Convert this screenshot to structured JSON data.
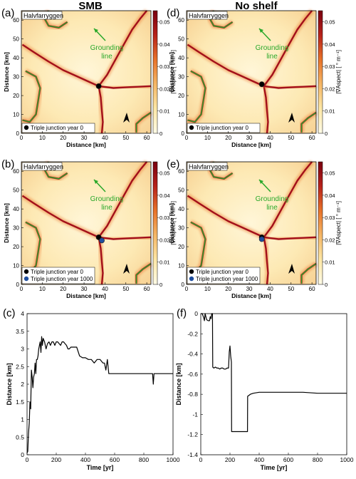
{
  "column_titles": [
    "SMB",
    "No shelf"
  ],
  "map_common": {
    "place_label": "Halvfarryggen",
    "grounding_label_line1": "Grounding",
    "grounding_label_line2": "line",
    "x_label": "Distance [km]",
    "y_label": "Distance [km]",
    "x_ticks": [
      0,
      10,
      20,
      30,
      40,
      50,
      60
    ],
    "y_ticks": [
      0,
      10,
      20,
      30,
      40,
      50,
      60
    ],
    "colorbar_label": "|∇Aspect| [ ° m⁻¹]",
    "colorbar_ticks": [
      0,
      0.01,
      0.02,
      0.03,
      0.04,
      0.05
    ],
    "colorbar_range": [
      0,
      0.055
    ],
    "colors": {
      "low": "#fffbe6",
      "mid": "#e8732a",
      "high": "#7a0010",
      "grounding": "#2aa82a"
    }
  },
  "maps": [
    {
      "panel": "(a)",
      "legend": [
        {
          "label": "Triple junction year 0",
          "color": "#000000"
        }
      ],
      "junctions": [
        {
          "x": 37,
          "y": 25,
          "color": "#000000"
        }
      ]
    },
    {
      "panel": "(d)",
      "legend": [
        {
          "label": "Triple junction year 0",
          "color": "#000000"
        }
      ],
      "junctions": [
        {
          "x": 36,
          "y": 26,
          "color": "#000000"
        }
      ]
    },
    {
      "panel": "(b)",
      "legend": [
        {
          "label": "Triple junction year 0",
          "color": "#000000"
        },
        {
          "label": "Triple junction year 1000",
          "color": "#1f4e9e"
        }
      ],
      "junctions": [
        {
          "x": 37,
          "y": 25,
          "color": "#000000"
        },
        {
          "x": 38.5,
          "y": 23.3,
          "color": "#1f4e9e"
        }
      ]
    },
    {
      "panel": "(e)",
      "legend": [
        {
          "label": "Triple junction year 0",
          "color": "#000000"
        },
        {
          "label": "Triple junction year 1000",
          "color": "#1f4e9e"
        }
      ],
      "junctions": [
        {
          "x": 36,
          "y": 25,
          "color": "#000000"
        },
        {
          "x": 36,
          "y": 24,
          "color": "#1f4e9e"
        }
      ]
    }
  ],
  "chart_data": [
    {
      "panel": "(c)",
      "type": "line",
      "xlabel": "Time [yr]",
      "ylabel": "Distance [km]",
      "xlim": [
        0,
        1000
      ],
      "ylim": [
        0,
        4
      ],
      "xticks": [
        0,
        200,
        400,
        600,
        800,
        1000
      ],
      "yticks": [
        0,
        0.5,
        1,
        1.5,
        2,
        2.5,
        3,
        3.5,
        4
      ],
      "series": [
        {
          "x": [
            0,
            5,
            10,
            15,
            20,
            25,
            30,
            35,
            40,
            45,
            50,
            55,
            60,
            65,
            70,
            75,
            80,
            85,
            90,
            95,
            100,
            105,
            110,
            120,
            130,
            140,
            150,
            160,
            170,
            180,
            190,
            200,
            210,
            220,
            230,
            240,
            250,
            260,
            270,
            280,
            290,
            300,
            320,
            340,
            360,
            380,
            400,
            420,
            440,
            460,
            480,
            500,
            510,
            520,
            530,
            540,
            550,
            560,
            600,
            700,
            800,
            860,
            865,
            870,
            875,
            880,
            900,
            1000
          ],
          "values": [
            0.05,
            0.1,
            0.6,
            0.9,
            1.5,
            1.3,
            2.4,
            2.2,
            1.9,
            2.2,
            2.3,
            2.6,
            2.3,
            2.7,
            2.7,
            2.8,
            3.0,
            3.1,
            3.2,
            2.9,
            3.35,
            3.1,
            3.3,
            3.2,
            3.0,
            3.15,
            3.2,
            3.1,
            3.2,
            3.2,
            3.1,
            3.2,
            3.2,
            3.15,
            3.1,
            3.2,
            3.2,
            3.15,
            3.1,
            3.0,
            3.0,
            3.05,
            3.05,
            3.05,
            2.8,
            2.75,
            2.75,
            2.7,
            2.7,
            2.6,
            2.7,
            2.7,
            2.65,
            2.6,
            2.6,
            2.4,
            2.7,
            2.3,
            2.3,
            2.3,
            2.3,
            2.3,
            2.0,
            2.3,
            2.3,
            2.3,
            2.3,
            2.3
          ]
        }
      ]
    },
    {
      "panel": "(f)",
      "type": "line",
      "xlabel": "Time [yr]",
      "ylabel": "Distance [km]",
      "xlim": [
        0,
        1000
      ],
      "ylim": [
        -1.4,
        0
      ],
      "xticks": [
        0,
        200,
        400,
        600,
        800,
        1000
      ],
      "yticks": [
        -1.4,
        -1.2,
        -1,
        -0.8,
        -0.6,
        -0.4,
        -0.2,
        0
      ],
      "series": [
        {
          "x": [
            0,
            10,
            20,
            25,
            30,
            40,
            50,
            60,
            65,
            70,
            75,
            80,
            82,
            90,
            100,
            110,
            120,
            130,
            140,
            150,
            160,
            170,
            180,
            190,
            195,
            200,
            205,
            210,
            211,
            230,
            260,
            300,
            320,
            321,
            340,
            360,
            400,
            500,
            600,
            700,
            800,
            900,
            1000
          ],
          "values": [
            0,
            0,
            -0.04,
            -0.07,
            0,
            -0.06,
            -0.07,
            -0.07,
            -0.03,
            -0.05,
            0,
            0,
            -0.53,
            -0.54,
            -0.53,
            -0.54,
            -0.54,
            -0.55,
            -0.54,
            -0.54,
            -0.55,
            -0.55,
            -0.54,
            -0.54,
            -0.38,
            -0.32,
            -0.42,
            -0.48,
            -1.17,
            -1.17,
            -1.17,
            -1.17,
            -1.17,
            -0.82,
            -0.8,
            -0.79,
            -0.78,
            -0.78,
            -0.78,
            -0.78,
            -0.79,
            -0.79,
            -0.79
          ]
        }
      ]
    }
  ]
}
